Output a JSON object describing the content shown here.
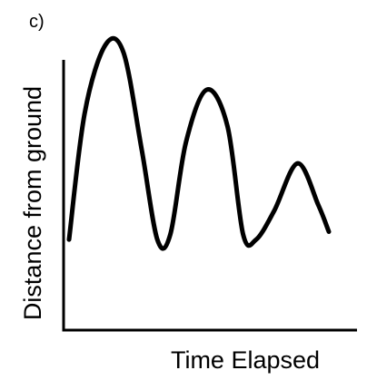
{
  "figure": {
    "panel_label": "c)"
  },
  "chart_data": {
    "type": "line",
    "title": "",
    "xlabel": "Time Elapsed",
    "ylabel": "Distance from ground",
    "xlim": [
      0,
      10
    ],
    "ylim": [
      0,
      10
    ],
    "grid": false,
    "legend": "none",
    "x_ticks": [],
    "y_ticks": [],
    "series": [
      {
        "color": "#000000",
        "points": [
          [
            0.0,
            2.2
          ],
          [
            0.6,
            7.0
          ],
          [
            1.4,
            9.6
          ],
          [
            2.1,
            9.3
          ],
          [
            2.8,
            5.6
          ],
          [
            3.4,
            2.2
          ],
          [
            3.9,
            2.4
          ],
          [
            4.5,
            5.9
          ],
          [
            5.3,
            7.9
          ],
          [
            6.1,
            6.5
          ],
          [
            6.7,
            2.4
          ],
          [
            7.2,
            2.2
          ],
          [
            7.9,
            3.3
          ],
          [
            8.8,
            5.1
          ],
          [
            9.6,
            3.5
          ],
          [
            10.0,
            2.5
          ]
        ]
      }
    ]
  }
}
